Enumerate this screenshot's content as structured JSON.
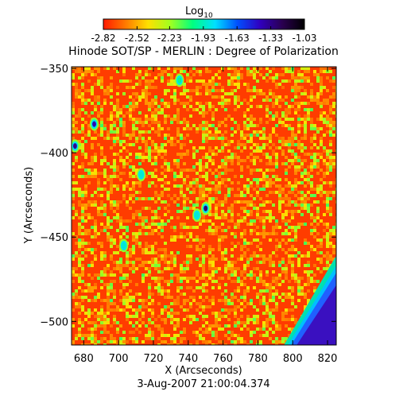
{
  "chart_data": {
    "type": "heatmap",
    "title": "Hinode SOT/SP - MERLIN : Degree of Polarization",
    "colorbar": {
      "label_base": "Log",
      "label_sub": "10",
      "ticks": [
        "-2.82",
        "-2.52",
        "-2.23",
        "-1.93",
        "-1.63",
        "-1.33",
        "-1.03"
      ],
      "range": [
        -2.82,
        -1.03
      ],
      "colors": [
        "#ff1a00",
        "#ff7a00",
        "#ffe000",
        "#a0ff20",
        "#00ff80",
        "#00e0ff",
        "#0050ff",
        "#3000c0",
        "#2a0050",
        "#000000"
      ]
    },
    "xlabel": "X (Arcseconds)",
    "ylabel": "Y (Arcseconds)",
    "xlim": [
      673,
      825
    ],
    "ylim": [
      -514,
      -349
    ],
    "xticks": [
      680,
      700,
      720,
      740,
      760,
      780,
      800,
      820
    ],
    "yticks": [
      -350,
      -400,
      -450,
      -500
    ],
    "timestamp": "3-Aug-2007 21:00:04.374",
    "background_level": -2.75,
    "features": [
      {
        "name": "limb-edge",
        "x_at_top": 825,
        "x_at_bottom": 795,
        "y_at_top": -461,
        "y_at_bottom": -514,
        "level": -1.2
      },
      {
        "name": "network-patch",
        "x": 686,
        "y": -383,
        "level": -1.4
      },
      {
        "name": "network-patch",
        "x": 675,
        "y": -396,
        "level": -1.35
      },
      {
        "name": "network-patch",
        "x": 750,
        "y": -433,
        "level": -1.3
      },
      {
        "name": "network-patch",
        "x": 713,
        "y": -413,
        "level": -1.9
      },
      {
        "name": "network-patch",
        "x": 703,
        "y": -455,
        "level": -1.9
      },
      {
        "name": "network-patch",
        "x": 735,
        "y": -357,
        "level": -2.0
      },
      {
        "name": "network-patch",
        "x": 745,
        "y": -437,
        "level": -1.9
      }
    ]
  }
}
